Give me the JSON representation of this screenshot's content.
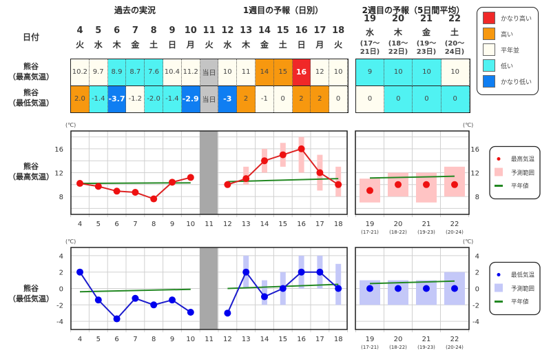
{
  "headers": {
    "past": "過去の実況",
    "week1": "1週目の予報（日別）",
    "week2": "2週目の予報（5日間平均）",
    "date_label": "日付"
  },
  "row_labels": {
    "max": [
      "熊谷",
      "（最高気温）"
    ],
    "min": [
      "熊谷",
      "（最低気温）"
    ]
  },
  "days": [
    {
      "d": "4",
      "w": "火"
    },
    {
      "d": "5",
      "w": "水"
    },
    {
      "d": "6",
      "w": "木"
    },
    {
      "d": "7",
      "w": "金"
    },
    {
      "d": "8",
      "w": "土"
    },
    {
      "d": "9",
      "w": "日"
    },
    {
      "d": "10",
      "w": "月"
    },
    {
      "d": "11",
      "w": "火"
    },
    {
      "d": "12",
      "w": "水"
    },
    {
      "d": "13",
      "w": "木"
    },
    {
      "d": "14",
      "w": "金"
    },
    {
      "d": "15",
      "w": "土"
    },
    {
      "d": "16",
      "w": "日"
    },
    {
      "d": "17",
      "w": "月"
    },
    {
      "d": "18",
      "w": "火"
    }
  ],
  "week2_days": [
    {
      "d": "19",
      "w": "水",
      "p1": "(17〜",
      "p2": "21日)",
      "axis": "(17-21)"
    },
    {
      "d": "20",
      "w": "木",
      "p1": "(18〜",
      "p2": "22日)",
      "axis": "(18-22)"
    },
    {
      "d": "21",
      "w": "金",
      "p1": "(19〜",
      "p2": "23日)",
      "axis": "(19-23)"
    },
    {
      "d": "22",
      "w": "土",
      "p1": "(20〜",
      "p2": "24日)",
      "axis": "(20-24)"
    }
  ],
  "table_max": [
    {
      "v": "10.2",
      "c": "normal"
    },
    {
      "v": "9.7",
      "c": "normal"
    },
    {
      "v": "8.9",
      "c": "low"
    },
    {
      "v": "8.7",
      "c": "low"
    },
    {
      "v": "7.6",
      "c": "low"
    },
    {
      "v": "10.4",
      "c": "normal"
    },
    {
      "v": "11.2",
      "c": "normal"
    },
    {
      "v": "当日",
      "c": "today"
    },
    {
      "v": "10",
      "c": "normal"
    },
    {
      "v": "11",
      "c": "normal"
    },
    {
      "v": "14",
      "c": "high"
    },
    {
      "v": "15",
      "c": "high"
    },
    {
      "v": "16",
      "c": "very_high"
    },
    {
      "v": "12",
      "c": "normal"
    },
    {
      "v": "10",
      "c": "normal"
    }
  ],
  "table_min": [
    {
      "v": "2.0",
      "c": "high"
    },
    {
      "v": "-1.4",
      "c": "low"
    },
    {
      "v": "-3.7",
      "c": "very_low"
    },
    {
      "v": "-1.2",
      "c": "normal"
    },
    {
      "v": "-2.0",
      "c": "low"
    },
    {
      "v": "-1.4",
      "c": "low"
    },
    {
      "v": "-2.9",
      "c": "very_low"
    },
    {
      "v": "当日",
      "c": "today"
    },
    {
      "v": "-3",
      "c": "very_low"
    },
    {
      "v": "2",
      "c": "high"
    },
    {
      "v": "-1",
      "c": "normal"
    },
    {
      "v": "0",
      "c": "normal"
    },
    {
      "v": "2",
      "c": "high"
    },
    {
      "v": "2",
      "c": "high"
    },
    {
      "v": "0",
      "c": "normal"
    }
  ],
  "table2_max": [
    {
      "v": "9",
      "c": "low"
    },
    {
      "v": "10",
      "c": "low"
    },
    {
      "v": "10",
      "c": "low"
    },
    {
      "v": "10",
      "c": "normal"
    }
  ],
  "table2_min": [
    {
      "v": "0",
      "c": "normal"
    },
    {
      "v": "0",
      "c": "low"
    },
    {
      "v": "0",
      "c": "low"
    },
    {
      "v": "0",
      "c": "low"
    }
  ],
  "colors": {
    "very_high": "#f02828",
    "high": "#f7980f",
    "normal": "#fffdf0",
    "low": "#50f2f2",
    "very_low": "#0f7ef2",
    "today": "#c4c4c4"
  },
  "category_legend": [
    {
      "key": "very_high",
      "label": "かなり高い"
    },
    {
      "key": "high",
      "label": "高い"
    },
    {
      "key": "normal",
      "label": "平年並"
    },
    {
      "key": "low",
      "label": "低い"
    },
    {
      "key": "very_low",
      "label": "かなり低い"
    }
  ],
  "chart_data": [
    {
      "type": "line",
      "title": "熊谷（最高気温）",
      "unit": "(℃)",
      "ylim": [
        5,
        19
      ],
      "yticks": [
        8,
        12,
        16
      ],
      "grid": true,
      "legend_placement": "right",
      "legend": {
        "point": "最高気温",
        "range": "予測範囲",
        "normal": "平年値"
      },
      "x_daily": [
        "4",
        "5",
        "6",
        "7",
        "8",
        "9",
        "10",
        "11",
        "12",
        "13",
        "14",
        "15",
        "16",
        "17",
        "18"
      ],
      "observed": [
        10.2,
        9.7,
        8.9,
        8.7,
        7.6,
        10.4,
        11.2
      ],
      "forecast": [
        10,
        11,
        14,
        15,
        16,
        12,
        10
      ],
      "forecast_range": [
        null,
        [
          10,
          13
        ],
        [
          12,
          16
        ],
        [
          13,
          17
        ],
        [
          12,
          18
        ],
        [
          9,
          15
        ],
        [
          8,
          13
        ]
      ],
      "normal_past": [
        10.2,
        10.3
      ],
      "normal_week1": [
        10.5,
        11.0
      ],
      "week2": [
        9,
        10,
        10,
        10
      ],
      "week2_range": [
        [
          7,
          11
        ],
        [
          8,
          12
        ],
        [
          7,
          12
        ],
        [
          8,
          13
        ]
      ],
      "normal_week2": [
        11.1,
        11.4
      ],
      "colors": {
        "point": "#ee1111",
        "line": "#dd2222",
        "range": "#ffc4c4",
        "normal": "#228822"
      }
    },
    {
      "type": "line",
      "title": "熊谷（最低気温）",
      "unit": "(℃)",
      "ylim": [
        -5,
        5
      ],
      "yticks": [
        -4,
        -2,
        0,
        2,
        4
      ],
      "grid": true,
      "legend_placement": "right",
      "legend": {
        "point": "最低気温",
        "range": "予測範囲",
        "normal": "平年値"
      },
      "x_daily": [
        "4",
        "5",
        "6",
        "7",
        "8",
        "9",
        "10",
        "11",
        "12",
        "13",
        "14",
        "15",
        "16",
        "17",
        "18"
      ],
      "observed": [
        2.0,
        -1.4,
        -3.7,
        -1.2,
        -2.0,
        -1.4,
        -2.9
      ],
      "forecast": [
        -3,
        2,
        -1,
        0,
        2,
        2,
        0
      ],
      "forecast_range": [
        null,
        [
          0,
          4
        ],
        [
          -2,
          1
        ],
        [
          -2,
          2
        ],
        [
          0,
          4
        ],
        [
          0,
          4
        ],
        [
          -2,
          3
        ]
      ],
      "normal_past": [
        -0.4,
        -0.1
      ],
      "normal_week1": [
        0.0,
        0.5
      ],
      "week2": [
        0,
        0,
        0,
        0
      ],
      "week2_range": [
        [
          -2,
          1
        ],
        [
          -2,
          1
        ],
        [
          -2,
          1
        ],
        [
          -2,
          2
        ]
      ],
      "normal_week2": [
        0.6,
        0.9
      ],
      "colors": {
        "point": "#0000ee",
        "line": "#1a1acc",
        "range": "#c4c8f8",
        "normal": "#228822"
      }
    }
  ]
}
